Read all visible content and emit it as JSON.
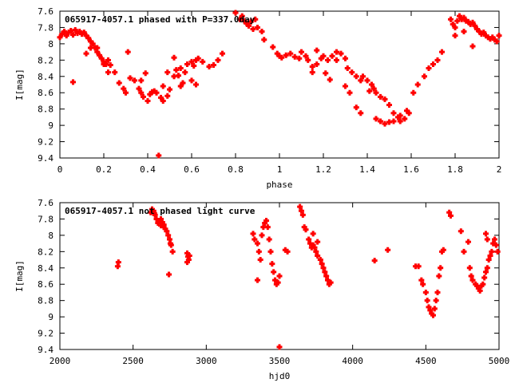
{
  "chart_data": [
    {
      "type": "scatter",
      "title": "065917-4057.1 phased with P=337.0day",
      "xlabel": "phase",
      "ylabel": "I[mag]",
      "xlim": [
        0,
        2
      ],
      "ylim": [
        9.4,
        7.6
      ],
      "y_inverted": true,
      "grid": false,
      "legend": "none",
      "xticks": [
        0,
        0.2,
        0.4,
        0.6,
        0.8,
        1,
        1.2,
        1.4,
        1.6,
        1.8,
        2
      ],
      "xtick_labels": [
        "0",
        "0.2",
        "0.4",
        "0.6",
        "0.8",
        "1",
        "1.2",
        "1.4",
        "1.6",
        "1.8",
        "2"
      ],
      "yticks": [
        7.6,
        7.8,
        8,
        8.2,
        8.4,
        8.6,
        8.8,
        9,
        9.2,
        9.4
      ],
      "ytick_labels": [
        "7.6",
        "7.8",
        "8",
        "8.2",
        "8.4",
        "8.6",
        "8.8",
        "9",
        "9.2",
        "9.4"
      ],
      "marker": "filled-plus",
      "color": "#ff0000",
      "points": [
        [
          0.0,
          7.92
        ],
        [
          0.01,
          7.88
        ],
        [
          0.02,
          7.85
        ],
        [
          0.03,
          7.9
        ],
        [
          0.04,
          7.86
        ],
        [
          0.05,
          7.84
        ],
        [
          0.06,
          7.89
        ],
        [
          0.07,
          7.83
        ],
        [
          0.08,
          7.87
        ],
        [
          0.09,
          7.85
        ],
        [
          0.1,
          7.88
        ],
        [
          0.11,
          7.86
        ],
        [
          0.12,
          7.9
        ],
        [
          0.13,
          7.93
        ],
        [
          0.14,
          7.97
        ],
        [
          0.15,
          8.0
        ],
        [
          0.16,
          8.05
        ],
        [
          0.17,
          8.1
        ],
        [
          0.18,
          8.14
        ],
        [
          0.19,
          8.18
        ],
        [
          0.2,
          8.22
        ],
        [
          0.21,
          8.25
        ],
        [
          0.22,
          8.2
        ],
        [
          0.23,
          8.26
        ],
        [
          0.25,
          8.35
        ],
        [
          0.27,
          8.48
        ],
        [
          0.29,
          8.55
        ],
        [
          0.3,
          8.6
        ],
        [
          0.32,
          8.42
        ],
        [
          0.34,
          8.45
        ],
        [
          0.36,
          8.55
        ],
        [
          0.37,
          8.6
        ],
        [
          0.38,
          8.65
        ],
        [
          0.4,
          8.7
        ],
        [
          0.41,
          8.62
        ],
        [
          0.43,
          8.58
        ],
        [
          0.44,
          8.6
        ],
        [
          0.46,
          8.66
        ],
        [
          0.47,
          8.7
        ],
        [
          0.49,
          8.64
        ],
        [
          0.5,
          8.56
        ],
        [
          0.52,
          8.4
        ],
        [
          0.53,
          8.32
        ],
        [
          0.55,
          8.3
        ],
        [
          0.57,
          8.35
        ],
        [
          0.58,
          8.25
        ],
        [
          0.6,
          8.22
        ],
        [
          0.62,
          8.2
        ],
        [
          0.63,
          8.18
        ],
        [
          0.65,
          8.22
        ],
        [
          0.68,
          8.28
        ],
        [
          0.7,
          8.26
        ],
        [
          0.72,
          8.2
        ],
        [
          0.74,
          8.12
        ],
        [
          0.06,
          8.47
        ],
        [
          0.12,
          8.12
        ],
        [
          0.14,
          8.05
        ],
        [
          0.17,
          8.05
        ],
        [
          0.2,
          8.25
        ],
        [
          0.22,
          8.35
        ],
        [
          0.31,
          8.1
        ],
        [
          0.37,
          8.45
        ],
        [
          0.39,
          8.36
        ],
        [
          0.42,
          8.59
        ],
        [
          0.45,
          9.37
        ],
        [
          0.47,
          8.52
        ],
        [
          0.49,
          8.35
        ],
        [
          0.52,
          8.17
        ],
        [
          0.54,
          8.39
        ],
        [
          0.55,
          8.52
        ],
        [
          0.56,
          8.48
        ],
        [
          0.6,
          8.45
        ],
        [
          0.62,
          8.5
        ],
        [
          0.61,
          8.27
        ],
        [
          0.8,
          7.62
        ],
        [
          0.82,
          7.7
        ],
        [
          0.83,
          7.66
        ],
        [
          0.84,
          7.72
        ],
        [
          0.85,
          7.75
        ],
        [
          0.86,
          7.78
        ],
        [
          0.88,
          7.82
        ],
        [
          0.9,
          7.8
        ],
        [
          0.92,
          7.85
        ],
        [
          0.93,
          7.95
        ],
        [
          0.87,
          7.73
        ],
        [
          0.89,
          7.7
        ],
        [
          0.97,
          8.04
        ],
        [
          0.99,
          8.12
        ],
        [
          1.0,
          8.15
        ],
        [
          1.01,
          8.17
        ],
        [
          1.03,
          8.14
        ],
        [
          1.05,
          8.12
        ],
        [
          1.07,
          8.16
        ],
        [
          1.09,
          8.18
        ],
        [
          1.1,
          8.1
        ],
        [
          1.12,
          8.15
        ],
        [
          1.13,
          8.2
        ],
        [
          1.15,
          8.28
        ],
        [
          1.17,
          8.25
        ],
        [
          1.19,
          8.18
        ],
        [
          1.2,
          8.15
        ],
        [
          1.22,
          8.2
        ],
        [
          1.24,
          8.15
        ],
        [
          1.26,
          8.1
        ],
        [
          1.28,
          8.12
        ],
        [
          1.3,
          8.18
        ],
        [
          1.31,
          8.3
        ],
        [
          1.33,
          8.35
        ],
        [
          1.35,
          8.4
        ],
        [
          1.37,
          8.45
        ],
        [
          1.38,
          8.4
        ],
        [
          1.4,
          8.45
        ],
        [
          1.42,
          8.5
        ],
        [
          1.44,
          8.6
        ],
        [
          1.46,
          8.65
        ],
        [
          1.48,
          8.68
        ],
        [
          1.5,
          8.75
        ],
        [
          1.52,
          8.85
        ],
        [
          1.54,
          8.9
        ],
        [
          1.55,
          8.95
        ],
        [
          1.57,
          8.92
        ],
        [
          1.59,
          8.85
        ],
        [
          1.61,
          8.6
        ],
        [
          1.63,
          8.5
        ],
        [
          1.66,
          8.4
        ],
        [
          1.68,
          8.3
        ],
        [
          1.7,
          8.25
        ],
        [
          1.72,
          8.2
        ],
        [
          1.3,
          8.52
        ],
        [
          1.32,
          8.6
        ],
        [
          1.35,
          8.78
        ],
        [
          1.37,
          8.85
        ],
        [
          1.41,
          8.58
        ],
        [
          1.43,
          8.55
        ],
        [
          1.44,
          8.92
        ],
        [
          1.46,
          8.95
        ],
        [
          1.48,
          8.98
        ],
        [
          1.5,
          8.96
        ],
        [
          1.52,
          8.95
        ],
        [
          1.55,
          8.88
        ],
        [
          1.58,
          8.82
        ],
        [
          1.17,
          8.08
        ],
        [
          1.21,
          8.36
        ],
        [
          1.23,
          8.44
        ],
        [
          1.15,
          8.35
        ],
        [
          1.26,
          8.2
        ],
        [
          1.74,
          8.1
        ],
        [
          1.78,
          7.7
        ],
        [
          1.79,
          7.76
        ],
        [
          1.8,
          7.8
        ],
        [
          1.81,
          7.72
        ],
        [
          1.82,
          7.66
        ],
        [
          1.83,
          7.7
        ],
        [
          1.84,
          7.68
        ],
        [
          1.85,
          7.72
        ],
        [
          1.86,
          7.73
        ],
        [
          1.87,
          7.76
        ],
        [
          1.88,
          7.74
        ],
        [
          1.89,
          7.78
        ],
        [
          1.9,
          7.82
        ],
        [
          1.91,
          7.85
        ],
        [
          1.92,
          7.88
        ],
        [
          1.93,
          7.86
        ],
        [
          1.94,
          7.9
        ],
        [
          1.95,
          7.92
        ],
        [
          1.96,
          7.94
        ],
        [
          1.97,
          7.92
        ],
        [
          1.98,
          7.95
        ],
        [
          1.99,
          7.97
        ],
        [
          2.0,
          7.9
        ],
        [
          1.88,
          8.03
        ],
        [
          1.84,
          7.85
        ],
        [
          1.8,
          7.9
        ]
      ]
    },
    {
      "type": "scatter",
      "title": "065917-4057.1 not phased light curve",
      "xlabel": "hjd0",
      "ylabel": "I[mag]",
      "xlim": [
        2000,
        5000
      ],
      "ylim": [
        9.4,
        7.6
      ],
      "y_inverted": true,
      "grid": false,
      "legend": "none",
      "xticks": [
        2000,
        2500,
        3000,
        3500,
        4000,
        4500,
        5000
      ],
      "xtick_labels": [
        "2000",
        "2500",
        "3000",
        "3500",
        "4000",
        "4500",
        "5000"
      ],
      "yticks": [
        7.6,
        7.8,
        8,
        8.2,
        8.4,
        8.6,
        8.8,
        9,
        9.2,
        9.4
      ],
      "ytick_labels": [
        "7.6",
        "7.8",
        "8",
        "8.2",
        "8.4",
        "8.6",
        "8.8",
        "9",
        "9.2",
        "9.4"
      ],
      "marker": "filled-plus",
      "color": "#ff0000",
      "points": [
        [
          2395,
          8.38
        ],
        [
          2400,
          8.33
        ],
        [
          2620,
          7.72
        ],
        [
          2630,
          7.68
        ],
        [
          2640,
          7.7
        ],
        [
          2645,
          7.73
        ],
        [
          2650,
          7.75
        ],
        [
          2660,
          7.8
        ],
        [
          2670,
          7.85
        ],
        [
          2680,
          7.82
        ],
        [
          2690,
          7.88
        ],
        [
          2700,
          7.84
        ],
        [
          2710,
          7.87
        ],
        [
          2720,
          7.92
        ],
        [
          2730,
          7.95
        ],
        [
          2740,
          8.0
        ],
        [
          2750,
          8.05
        ],
        [
          2755,
          8.1
        ],
        [
          2760,
          8.12
        ],
        [
          2770,
          8.2
        ],
        [
          2745,
          8.48
        ],
        [
          2690,
          7.8
        ],
        [
          2710,
          7.9
        ],
        [
          2870,
          8.22
        ],
        [
          2875,
          8.26
        ],
        [
          2880,
          8.3
        ],
        [
          2885,
          8.25
        ],
        [
          2870,
          8.33
        ],
        [
          3320,
          7.98
        ],
        [
          3330,
          8.05
        ],
        [
          3350,
          8.1
        ],
        [
          3360,
          8.2
        ],
        [
          3370,
          8.3
        ],
        [
          3380,
          8.0
        ],
        [
          3390,
          7.9
        ],
        [
          3400,
          7.85
        ],
        [
          3410,
          7.82
        ],
        [
          3420,
          7.9
        ],
        [
          3430,
          8.05
        ],
        [
          3440,
          8.2
        ],
        [
          3450,
          8.35
        ],
        [
          3460,
          8.45
        ],
        [
          3470,
          8.55
        ],
        [
          3480,
          8.6
        ],
        [
          3490,
          8.58
        ],
        [
          3500,
          8.5
        ],
        [
          3350,
          8.55
        ],
        [
          3540,
          8.18
        ],
        [
          3555,
          8.2
        ],
        [
          3640,
          7.65
        ],
        [
          3650,
          7.7
        ],
        [
          3660,
          7.75
        ],
        [
          3670,
          7.9
        ],
        [
          3680,
          7.93
        ],
        [
          3700,
          8.05
        ],
        [
          3710,
          8.1
        ],
        [
          3720,
          8.15
        ],
        [
          3730,
          8.12
        ],
        [
          3740,
          8.15
        ],
        [
          3750,
          8.2
        ],
        [
          3760,
          8.25
        ],
        [
          3780,
          8.3
        ],
        [
          3790,
          8.35
        ],
        [
          3800,
          8.4
        ],
        [
          3810,
          8.45
        ],
        [
          3820,
          8.5
        ],
        [
          3830,
          8.55
        ],
        [
          3840,
          8.6
        ],
        [
          3850,
          8.58
        ],
        [
          3730,
          7.98
        ],
        [
          3760,
          8.08
        ],
        [
          3500,
          9.37
        ],
        [
          4150,
          8.31
        ],
        [
          4240,
          8.18
        ],
        [
          4430,
          8.38
        ],
        [
          4450,
          8.38
        ],
        [
          4470,
          8.55
        ],
        [
          4480,
          8.6
        ],
        [
          4500,
          8.7
        ],
        [
          4510,
          8.8
        ],
        [
          4520,
          8.88
        ],
        [
          4530,
          8.92
        ],
        [
          4540,
          8.96
        ],
        [
          4550,
          8.98
        ],
        [
          4560,
          8.9
        ],
        [
          4570,
          8.8
        ],
        [
          4580,
          8.7
        ],
        [
          4590,
          8.5
        ],
        [
          4600,
          8.4
        ],
        [
          4610,
          8.2
        ],
        [
          4620,
          8.18
        ],
        [
          4660,
          7.72
        ],
        [
          4670,
          7.76
        ],
        [
          4740,
          7.95
        ],
        [
          4760,
          8.2
        ],
        [
          4790,
          8.08
        ],
        [
          4800,
          8.4
        ],
        [
          4810,
          8.5
        ],
        [
          4820,
          8.55
        ],
        [
          4840,
          8.6
        ],
        [
          4850,
          8.62
        ],
        [
          4860,
          8.65
        ],
        [
          4870,
          8.68
        ],
        [
          4880,
          8.62
        ],
        [
          4890,
          8.6
        ],
        [
          4900,
          8.52
        ],
        [
          4910,
          8.45
        ],
        [
          4920,
          8.4
        ],
        [
          4930,
          8.3
        ],
        [
          4940,
          8.25
        ],
        [
          4950,
          8.2
        ],
        [
          4960,
          8.1
        ],
        [
          4970,
          8.05
        ],
        [
          4980,
          8.12
        ],
        [
          4990,
          8.2
        ],
        [
          4910,
          7.98
        ],
        [
          4920,
          8.05
        ]
      ]
    }
  ]
}
